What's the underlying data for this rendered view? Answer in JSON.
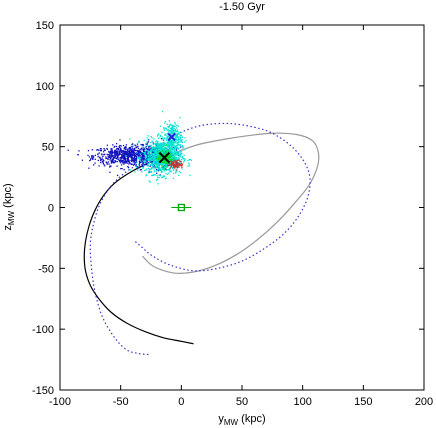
{
  "chart_data": {
    "type": "scatter",
    "title": "-1.50 Gyr",
    "xlabel": "y",
    "xlabel_sub": "MW",
    "xlabel_unit": " (kpc)",
    "ylabel": "z",
    "ylabel_sub": "MW",
    "ylabel_unit": " (kpc)",
    "xlim": [
      -100,
      200
    ],
    "ylim": [
      -150,
      150
    ],
    "xticks": [
      -100,
      -50,
      0,
      50,
      100,
      150,
      200
    ],
    "yticks": [
      -150,
      -100,
      -50,
      0,
      50,
      100,
      150
    ],
    "grid": false,
    "legend": "none",
    "colors": {
      "past_orbit": "#000000",
      "future_orbit": "#999999",
      "companion_orbit": "#3333cc",
      "particles_dark": "#1010c0",
      "particles_light": "#00e5d0",
      "particles_green": "#00dd33",
      "particles_red": "#d03030",
      "mw_marker": "#00aa00",
      "center_marker": "#000000",
      "companion_marker": "#2222dd"
    },
    "series": [
      {
        "key": "past_orbit",
        "style": "solid",
        "points": [
          [
            -15,
            41
          ],
          [
            -28,
            36
          ],
          [
            -42,
            29
          ],
          [
            -55,
            20
          ],
          [
            -64,
            10
          ],
          [
            -71,
            -2
          ],
          [
            -76,
            -15
          ],
          [
            -79,
            -28
          ],
          [
            -80,
            -40
          ],
          [
            -79,
            -52
          ],
          [
            -75,
            -64
          ],
          [
            -68,
            -75
          ],
          [
            -58,
            -86
          ],
          [
            -45,
            -95
          ],
          [
            -30,
            -102
          ],
          [
            -15,
            -107
          ],
          [
            0,
            -110
          ],
          [
            10,
            -112
          ]
        ]
      },
      {
        "key": "future_orbit",
        "style": "solid",
        "points": [
          [
            -15,
            41
          ],
          [
            0,
            47
          ],
          [
            15,
            52
          ],
          [
            35,
            56
          ],
          [
            55,
            59
          ],
          [
            75,
            61
          ],
          [
            95,
            60
          ],
          [
            108,
            55
          ],
          [
            113,
            45
          ],
          [
            112,
            33
          ],
          [
            105,
            18
          ],
          [
            92,
            2
          ],
          [
            78,
            -13
          ],
          [
            62,
            -27
          ],
          [
            45,
            -39
          ],
          [
            27,
            -48
          ],
          [
            10,
            -53
          ],
          [
            -5,
            -54
          ],
          [
            -17,
            -51
          ],
          [
            -25,
            -47
          ],
          [
            -32,
            -40
          ]
        ]
      },
      {
        "key": "companion_orbit",
        "style": "dotted",
        "points": [
          [
            -18,
            40
          ],
          [
            -38,
            34
          ],
          [
            -55,
            21
          ],
          [
            -66,
            5
          ],
          [
            -72,
            -12
          ],
          [
            -75,
            -30
          ],
          [
            -74,
            -50
          ],
          [
            -71,
            -70
          ],
          [
            -65,
            -90
          ],
          [
            -55,
            -107
          ],
          [
            -45,
            -117
          ],
          [
            -35,
            -120
          ],
          [
            -25,
            -121
          ]
        ]
      },
      {
        "key": "companion_future",
        "style": "dotted",
        "points": [
          [
            -10,
            57
          ],
          [
            5,
            64
          ],
          [
            20,
            68
          ],
          [
            40,
            69
          ],
          [
            60,
            66
          ],
          [
            75,
            61
          ],
          [
            90,
            51
          ],
          [
            101,
            38
          ],
          [
            106,
            24
          ],
          [
            104,
            8
          ],
          [
            96,
            -8
          ],
          [
            84,
            -22
          ],
          [
            68,
            -34
          ],
          [
            50,
            -44
          ],
          [
            30,
            -50
          ],
          [
            10,
            -52
          ],
          [
            -10,
            -47
          ],
          [
            -25,
            -39
          ],
          [
            -32,
            -33
          ],
          [
            -38,
            -28
          ]
        ]
      }
    ],
    "markers": [
      {
        "key": "mw_center",
        "shape": "square",
        "x": 0,
        "y": 0
      },
      {
        "key": "host_center",
        "shape": "x",
        "x": -14,
        "y": 41
      },
      {
        "key": "companion_center",
        "shape": "x",
        "x": -8,
        "y": 58
      }
    ],
    "particle_clouds": [
      {
        "key": "dark_tail",
        "color_key": "particles_dark",
        "cx": -45,
        "cy": 43,
        "sx": 14,
        "sy": 4,
        "n": 700
      },
      {
        "key": "dark_core",
        "color_key": "particles_dark",
        "cx": -22,
        "cy": 43,
        "sx": 8,
        "sy": 6,
        "n": 300
      },
      {
        "key": "light_main",
        "color_key": "particles_light",
        "cx": -16,
        "cy": 42,
        "sx": 8,
        "sy": 7,
        "n": 900
      },
      {
        "key": "light_upper",
        "color_key": "particles_light",
        "cx": -8,
        "cy": 58,
        "sx": 4,
        "sy": 6,
        "n": 260
      },
      {
        "key": "green_core",
        "color_key": "particles_green",
        "cx": -14,
        "cy": 41,
        "sx": 3,
        "sy": 3,
        "n": 220
      },
      {
        "key": "red_core",
        "color_key": "particles_red",
        "cx": -5,
        "cy": 36,
        "sx": 3,
        "sy": 1.5,
        "n": 90
      }
    ]
  }
}
